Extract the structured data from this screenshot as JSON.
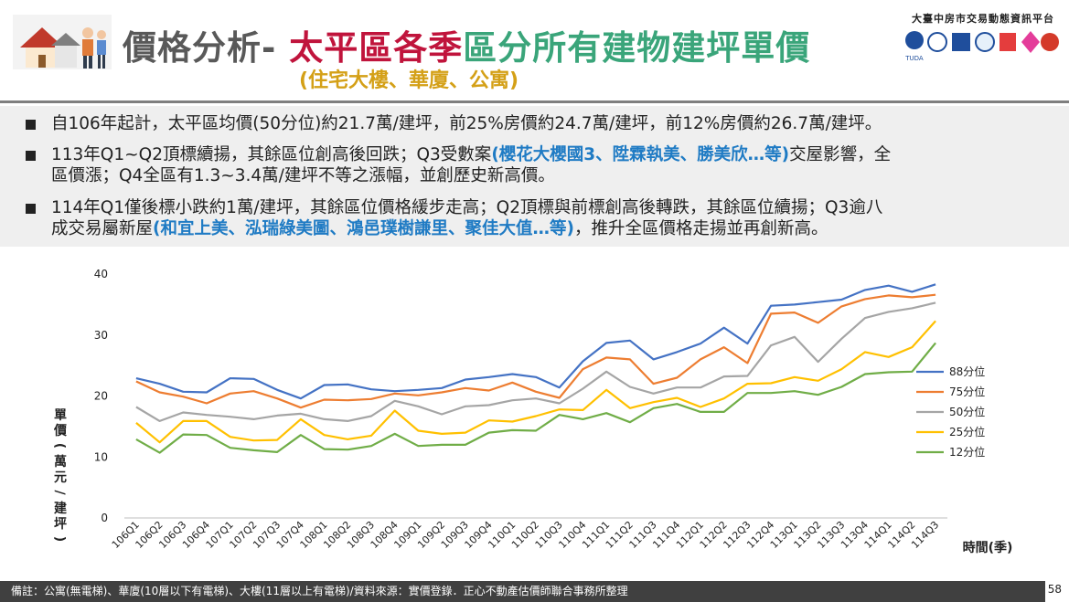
{
  "header": {
    "title_part1": "價格分析-",
    "title_part2": "太平區各季",
    "title_part3": "區分所有建物建坪單價",
    "subtitle": "(住宅大樓、華廈、公寓)",
    "org_name": "大臺中房市交易動態資訊平台",
    "logo_label": "TUDA"
  },
  "bullets": [
    {
      "text": "自106年起計，太平區均價(50分位)約21.7萬/建坪，前25%房價約24.7萬/建坪，前12%房價約26.7萬/建坪。"
    },
    {
      "line1_a": "113年Q1~Q2頂標續揚，其餘區位創高後回跌；Q3受數案",
      "line1_hl": "(櫻花大櫻國3、陞霖執美、勝美欣…等)",
      "line1_b": "交屋影響，全",
      "line2": "區價漲；Q4全區有1.3~3.4萬/建坪不等之漲幅，並創歷史新高價。"
    },
    {
      "line1": "114年Q1僅後標小跌約1萬/建坪，其餘區位價格緩步走高；Q2頂標與前標創高後轉跌，其餘區位續揚；Q3逾八",
      "line2_a": "成交易屬新屋",
      "line2_hl": "(和宜上美、泓瑞綠美圖、鴻邑璞樹謙里、聚佳大值…等)",
      "line2_b": "，推升全區價格走揚並再創新高。"
    }
  ],
  "footer": {
    "note": "備註：公寓(無電梯)、華廈(10層以下有電梯)、大樓(11層以上有電梯)/資料來源：實價登錄．正心不動產估價師聯合事務所整理",
    "page_number": "58"
  },
  "chart_data": {
    "type": "line",
    "title": "",
    "xlabel": "時間(季)",
    "ylabel": "單價(萬元/建坪)",
    "ylim": [
      0,
      40
    ],
    "yticks": [
      0,
      10,
      20,
      30,
      40
    ],
    "grid": false,
    "legend_position": "right",
    "categories": [
      "106Q1",
      "106Q2",
      "106Q3",
      "106Q4",
      "107Q1",
      "107Q2",
      "107Q3",
      "107Q4",
      "108Q1",
      "108Q2",
      "108Q3",
      "108Q4",
      "109Q1",
      "109Q2",
      "109Q3",
      "109Q4",
      "110Q1",
      "110Q2",
      "110Q3",
      "110Q4",
      "111Q1",
      "111Q2",
      "111Q3",
      "111Q4",
      "112Q1",
      "112Q2",
      "112Q3",
      "112Q4",
      "113Q1",
      "113Q2",
      "113Q3",
      "113Q4",
      "114Q1",
      "114Q2",
      "114Q3"
    ],
    "series": [
      {
        "name": "88分位",
        "color": "#4472C4",
        "values": [
          22.9,
          22.0,
          20.7,
          20.6,
          22.9,
          22.8,
          21.0,
          19.6,
          21.8,
          21.9,
          21.1,
          20.8,
          21.0,
          21.3,
          22.7,
          23.1,
          23.6,
          23.1,
          21.4,
          25.7,
          28.7,
          29.1,
          26.0,
          27.2,
          28.6,
          31.2,
          28.6,
          34.8,
          35.0,
          35.4,
          35.8,
          37.4,
          38.1,
          37.1,
          38.3
        ]
      },
      {
        "name": "75分位",
        "color": "#ED7D31",
        "values": [
          22.4,
          20.6,
          19.9,
          18.8,
          20.4,
          20.8,
          19.6,
          18.1,
          19.4,
          19.3,
          19.5,
          20.4,
          20.1,
          20.6,
          21.3,
          20.9,
          22.2,
          20.7,
          19.7,
          24.4,
          26.3,
          26.0,
          22.0,
          23.0,
          26.0,
          28.0,
          25.4,
          33.5,
          33.7,
          32.0,
          34.7,
          35.9,
          36.5,
          36.2,
          36.6
        ]
      },
      {
        "name": "50分位",
        "color": "#A5A5A5",
        "values": [
          18.2,
          15.9,
          17.3,
          16.9,
          16.6,
          16.2,
          16.8,
          17.1,
          16.2,
          15.9,
          16.7,
          19.2,
          18.3,
          17.0,
          18.3,
          18.5,
          19.3,
          19.6,
          18.8,
          21.2,
          24.0,
          21.5,
          20.4,
          21.4,
          21.4,
          23.2,
          23.3,
          28.3,
          29.7,
          25.6,
          29.4,
          32.8,
          33.8,
          34.4,
          35.3
        ]
      },
      {
        "name": "25分位",
        "color": "#FFC000",
        "values": [
          15.6,
          12.4,
          15.9,
          15.9,
          13.3,
          12.7,
          12.8,
          16.2,
          13.6,
          12.9,
          13.5,
          17.6,
          14.3,
          13.8,
          14.0,
          16.0,
          15.8,
          16.7,
          17.8,
          17.7,
          21.0,
          18.0,
          19.0,
          19.7,
          18.2,
          19.6,
          22.0,
          22.1,
          23.1,
          22.5,
          24.4,
          27.2,
          26.4,
          28.0,
          32.3
        ]
      },
      {
        "name": "12分位",
        "color": "#70AD47",
        "values": [
          12.9,
          10.7,
          13.7,
          13.6,
          11.5,
          11.1,
          10.8,
          13.6,
          11.3,
          11.2,
          11.8,
          13.8,
          11.8,
          12.0,
          12.0,
          14.0,
          14.4,
          14.3,
          16.9,
          16.2,
          17.2,
          15.7,
          18.0,
          18.7,
          17.4,
          17.4,
          20.5,
          20.5,
          20.8,
          20.2,
          21.5,
          23.6,
          23.9,
          24.0,
          28.7
        ]
      }
    ]
  }
}
